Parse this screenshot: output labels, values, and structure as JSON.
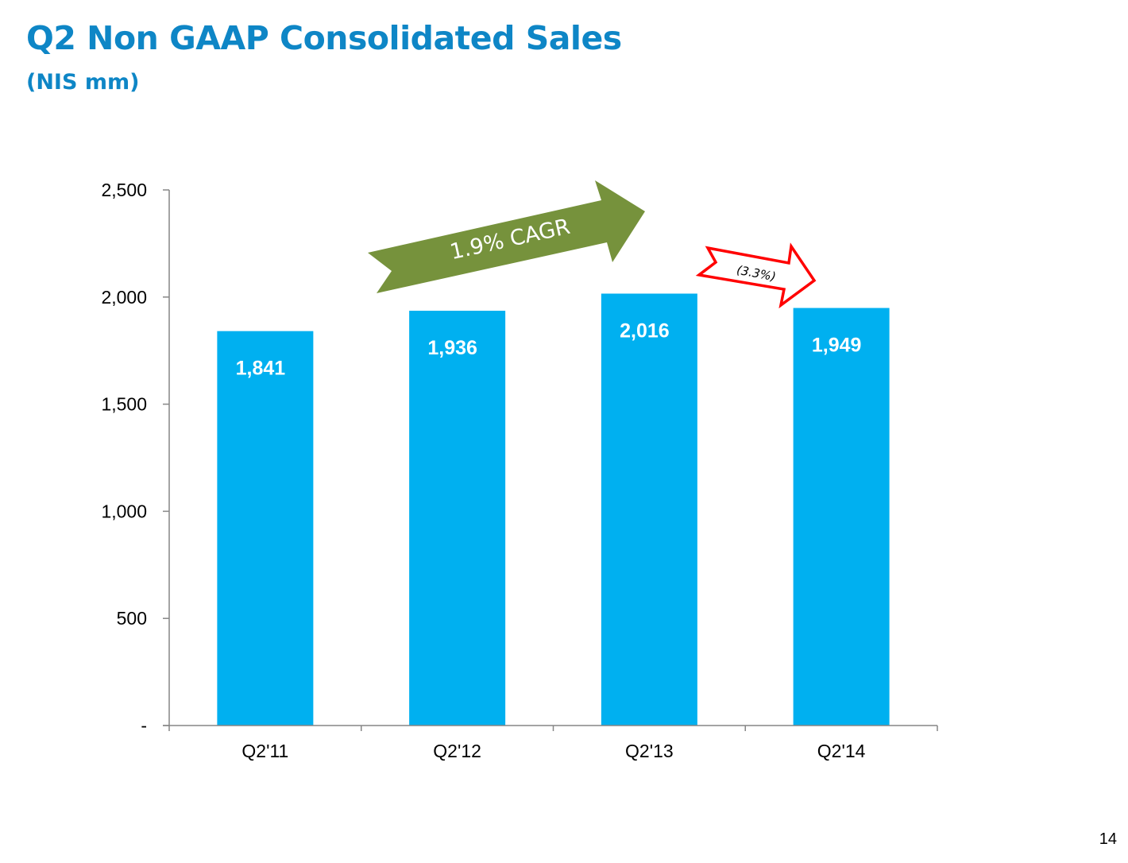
{
  "slide": {
    "title": "Q2 Non GAAP Consolidated Sales",
    "subtitle": "(NIS mm)",
    "page_number": "14"
  },
  "chart_data": {
    "type": "bar",
    "categories": [
      "Q2'11",
      "Q2'12",
      "Q2'13",
      "Q2'14"
    ],
    "values": [
      1841,
      1936,
      2016,
      1949
    ],
    "data_labels": [
      "1,841",
      "1,936",
      "2,016",
      "1,949"
    ],
    "ylim": [
      0,
      2500
    ],
    "yticks": [
      {
        "value": 0,
        "label": "-"
      },
      {
        "value": 500,
        "label": "500"
      },
      {
        "value": 1000,
        "label": "1,000"
      },
      {
        "value": 1500,
        "label": "1,500"
      },
      {
        "value": 2000,
        "label": "2,000"
      },
      {
        "value": 2500,
        "label": "2,500"
      }
    ],
    "grid": false,
    "bar_color": "#00b0f0",
    "annotations": [
      {
        "text": "1.9% CAGR",
        "color": "#76923c"
      },
      {
        "text": "(3.3%)",
        "color": "#ff0000"
      }
    ]
  }
}
